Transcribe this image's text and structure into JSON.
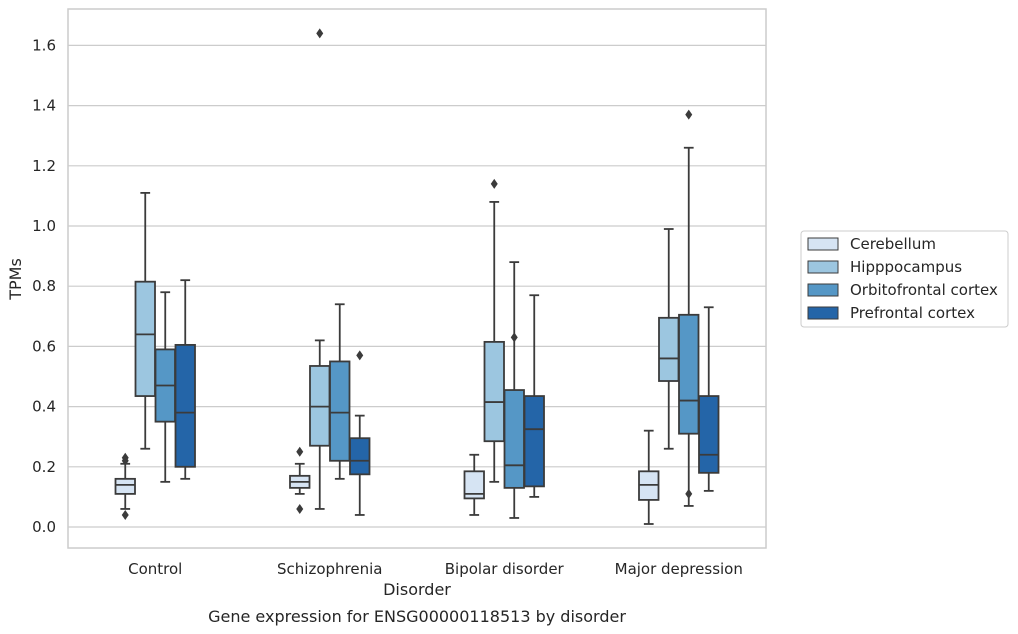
{
  "chart_data": {
    "type": "box",
    "xlabel": "Disorder",
    "ylabel": "TPMs",
    "caption": "Gene expression for ENSG00000118513 by disorder",
    "ylim": [
      -0.065,
      1.725
    ],
    "yticks": [
      "0.0",
      "0.2",
      "0.4",
      "0.6",
      "0.8",
      "1.0",
      "1.2",
      "1.4",
      "1.6"
    ],
    "grid": true,
    "legend_position": "right",
    "categories": [
      "Control",
      "Schizophrenia",
      "Bipolar disorder",
      "Major depression"
    ],
    "series": [
      {
        "name": "Cerebellum",
        "color": "#d6e4f3",
        "boxes": [
          {
            "low": 0.06,
            "q1": 0.11,
            "median": 0.14,
            "q3": 0.16,
            "high": 0.21,
            "outliers": [
              0.04,
              0.23,
              0.22
            ]
          },
          {
            "low": 0.11,
            "q1": 0.13,
            "median": 0.15,
            "q3": 0.17,
            "high": 0.21,
            "outliers": [
              0.06,
              0.25
            ]
          },
          {
            "low": 0.04,
            "q1": 0.095,
            "median": 0.11,
            "q3": 0.185,
            "high": 0.24,
            "outliers": []
          },
          {
            "low": 0.01,
            "q1": 0.09,
            "median": 0.14,
            "q3": 0.185,
            "high": 0.32,
            "outliers": []
          }
        ]
      },
      {
        "name": "Hipppocampus",
        "color": "#9cc6e0",
        "boxes": [
          {
            "low": 0.26,
            "q1": 0.435,
            "median": 0.64,
            "q3": 0.815,
            "high": 1.11,
            "outliers": []
          },
          {
            "low": 0.06,
            "q1": 0.27,
            "median": 0.4,
            "q3": 0.535,
            "high": 0.62,
            "outliers": [
              1.64
            ]
          },
          {
            "low": 0.15,
            "q1": 0.285,
            "median": 0.415,
            "q3": 0.615,
            "high": 1.08,
            "outliers": [
              1.14
            ]
          },
          {
            "low": 0.26,
            "q1": 0.485,
            "median": 0.56,
            "q3": 0.695,
            "high": 0.99,
            "outliers": []
          }
        ]
      },
      {
        "name": "Orbitofrontal cortex",
        "color": "#5597c6",
        "boxes": [
          {
            "low": 0.15,
            "q1": 0.35,
            "median": 0.47,
            "q3": 0.59,
            "high": 0.78,
            "outliers": []
          },
          {
            "low": 0.16,
            "q1": 0.22,
            "median": 0.38,
            "q3": 0.55,
            "high": 0.74,
            "outliers": []
          },
          {
            "low": 0.03,
            "q1": 0.13,
            "median": 0.205,
            "q3": 0.455,
            "high": 0.88,
            "outliers": [
              0.63
            ]
          },
          {
            "low": 0.07,
            "q1": 0.31,
            "median": 0.42,
            "q3": 0.705,
            "high": 1.26,
            "outliers": [
              1.37,
              0.11
            ]
          }
        ]
      },
      {
        "name": "Prefrontal cortex",
        "color": "#2465a8",
        "boxes": [
          {
            "low": 0.16,
            "q1": 0.2,
            "median": 0.38,
            "q3": 0.605,
            "high": 0.82,
            "outliers": []
          },
          {
            "low": 0.04,
            "q1": 0.175,
            "median": 0.22,
            "q3": 0.295,
            "high": 0.37,
            "outliers": [
              0.57
            ]
          },
          {
            "low": 0.1,
            "q1": 0.135,
            "median": 0.325,
            "q3": 0.435,
            "high": 0.77,
            "outliers": []
          },
          {
            "low": 0.12,
            "q1": 0.18,
            "median": 0.24,
            "q3": 0.435,
            "high": 0.73,
            "outliers": []
          }
        ]
      }
    ]
  }
}
